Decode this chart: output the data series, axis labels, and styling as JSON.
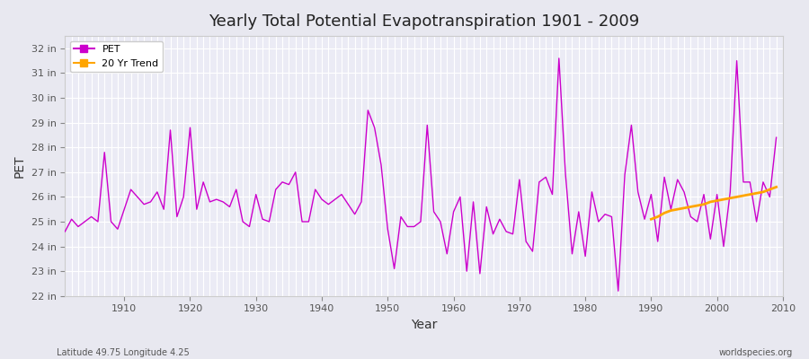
{
  "title": "Yearly Total Potential Evapotranspiration 1901 - 2009",
  "ylabel": "PET",
  "xlabel": "Year",
  "footnote_left": "Latitude 49.75 Longitude 4.25",
  "footnote_right": "worldspecies.org",
  "ylim": [
    22,
    32.5
  ],
  "yticks": [
    22,
    23,
    24,
    25,
    26,
    27,
    28,
    29,
    30,
    31,
    32
  ],
  "pet_color": "#CC00CC",
  "trend_color": "#FFA500",
  "bg_color": "#E8E8F0",
  "plot_bg": "#EBEBF5",
  "grid_color": "#FFFFFF",
  "years": [
    1901,
    1902,
    1903,
    1904,
    1905,
    1906,
    1907,
    1908,
    1909,
    1910,
    1911,
    1912,
    1913,
    1914,
    1915,
    1916,
    1917,
    1918,
    1919,
    1920,
    1921,
    1922,
    1923,
    1924,
    1925,
    1926,
    1927,
    1928,
    1929,
    1930,
    1931,
    1932,
    1933,
    1934,
    1935,
    1936,
    1937,
    1938,
    1939,
    1940,
    1941,
    1942,
    1943,
    1944,
    1945,
    1946,
    1947,
    1948,
    1949,
    1950,
    1951,
    1952,
    1953,
    1954,
    1955,
    1956,
    1957,
    1958,
    1959,
    1960,
    1961,
    1962,
    1963,
    1964,
    1965,
    1966,
    1967,
    1968,
    1969,
    1970,
    1971,
    1972,
    1973,
    1974,
    1975,
    1976,
    1977,
    1978,
    1979,
    1980,
    1981,
    1982,
    1983,
    1984,
    1985,
    1986,
    1987,
    1988,
    1989,
    1990,
    1991,
    1992,
    1993,
    1994,
    1995,
    1996,
    1997,
    1998,
    1999,
    2000,
    2001,
    2002,
    2003,
    2004,
    2005,
    2006,
    2007,
    2008,
    2009
  ],
  "pet_values": [
    24.6,
    25.1,
    24.8,
    25.0,
    25.2,
    25.0,
    27.8,
    25.0,
    24.7,
    25.5,
    26.3,
    26.0,
    25.7,
    25.8,
    26.2,
    25.5,
    28.7,
    25.2,
    26.0,
    28.8,
    25.5,
    26.6,
    25.8,
    25.9,
    25.8,
    25.6,
    26.3,
    25.0,
    24.8,
    26.1,
    25.1,
    25.0,
    26.3,
    26.6,
    26.5,
    27.0,
    25.0,
    25.0,
    26.3,
    25.9,
    25.7,
    25.9,
    26.1,
    25.7,
    25.3,
    25.8,
    29.5,
    28.8,
    27.3,
    24.7,
    23.1,
    25.2,
    24.8,
    24.8,
    25.0,
    28.9,
    25.4,
    25.0,
    23.7,
    25.4,
    26.0,
    23.0,
    25.8,
    22.9,
    25.6,
    24.5,
    25.1,
    24.6,
    24.5,
    26.7,
    24.2,
    23.8,
    26.6,
    26.8,
    26.1,
    31.6,
    26.9,
    23.7,
    25.4,
    23.6,
    26.2,
    25.0,
    25.3,
    25.2,
    22.2,
    26.9,
    28.9,
    26.2,
    25.1,
    26.1,
    24.2,
    26.8,
    25.5,
    26.7,
    26.2,
    25.2,
    25.0,
    26.1,
    24.3,
    26.1,
    24.0,
    26.2,
    31.5,
    26.6,
    26.6,
    25.0,
    26.6,
    26.0,
    28.4
  ],
  "trend_years": [
    1990,
    1991,
    1992,
    1993,
    1994,
    1995,
    1996,
    1997,
    1998,
    1999,
    2000,
    2001,
    2002,
    2003,
    2004,
    2005,
    2006,
    2007,
    2008,
    2009
  ],
  "trend_values": [
    25.1,
    25.2,
    25.35,
    25.45,
    25.5,
    25.55,
    25.6,
    25.65,
    25.7,
    25.8,
    25.85,
    25.9,
    25.95,
    26.0,
    26.05,
    26.1,
    26.15,
    26.2,
    26.3,
    26.4
  ]
}
